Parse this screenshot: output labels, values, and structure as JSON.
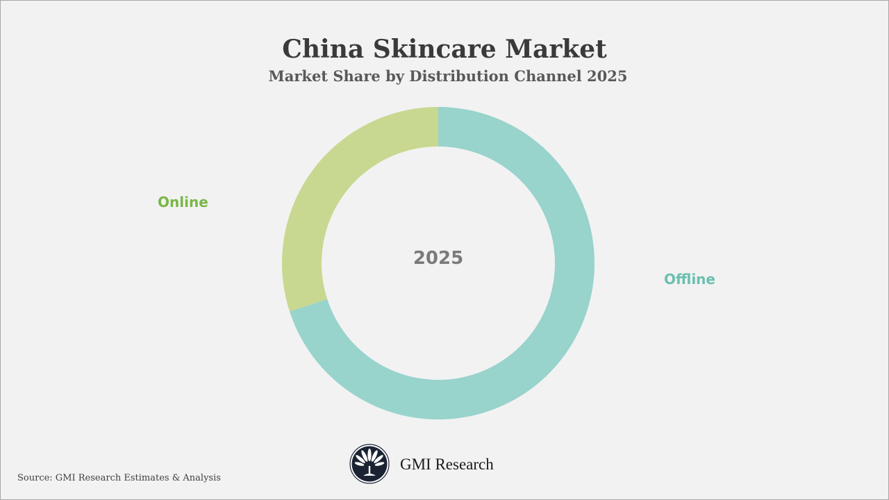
{
  "header": {
    "title": "China Skincare Market",
    "subtitle": "Market Share by Distribution Channel 2025"
  },
  "center_label": "2025",
  "labels": {
    "online": "Online",
    "offline": "Offline"
  },
  "colors": {
    "online": "#c8d890",
    "offline": "#98d3cc",
    "online_text": "#7ab648",
    "offline_text": "#6cbfb0",
    "background": "#f2f2f2"
  },
  "footer": {
    "source": "Source: GMI Research Estimates & Analysis",
    "brand": "GMI Research"
  },
  "chart_data": {
    "type": "pie",
    "variant": "donut",
    "title": "China Skincare Market",
    "subtitle": "Market Share by Distribution Channel 2025",
    "center_text": "2025",
    "categories": [
      "Offline",
      "Online"
    ],
    "values": [
      70,
      30
    ],
    "unit": "%",
    "colors": [
      "#98d3cc",
      "#c8d890"
    ],
    "legend": "labels placed beside chart",
    "start_angle": "12 o'clock, clockwise"
  }
}
